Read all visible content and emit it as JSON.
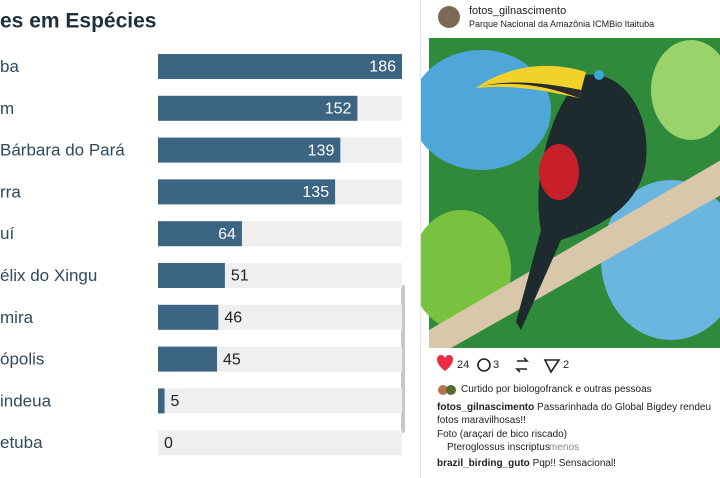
{
  "chart_data": {
    "type": "bar",
    "orientation": "horizontal",
    "title": "es em Espécies",
    "categories": [
      "ba",
      "m",
      "Bárbara do Pará",
      "rra",
      "uí",
      "élix do Xingu",
      "mira",
      "ópolis",
      "indeua",
      "etuba"
    ],
    "values": [
      186,
      152,
      139,
      135,
      64,
      51,
      46,
      45,
      5,
      0
    ],
    "color": "#3c6483",
    "xlim": [
      0,
      186
    ]
  },
  "post": {
    "username": "fotos_gilnascimento",
    "location": "Parque Nacional da Amazônia ICMBio Itaituba",
    "likes": "24",
    "comments": "3",
    "shares": "2",
    "liked_by": "Curtido por biologofranck e outras pessoas",
    "caption_user": "fotos_gilnascimento",
    "caption": "Passarinhada do Global Bigdey rendeu fotos maravilhosas!!",
    "caption_line2": "Foto (araçari de bico riscado)",
    "caption_line3": "Pteroglossus inscriptus",
    "more": "menos",
    "comment_user": "brazil_birding_guto",
    "comment": "Pqp!! Sensacional!"
  }
}
